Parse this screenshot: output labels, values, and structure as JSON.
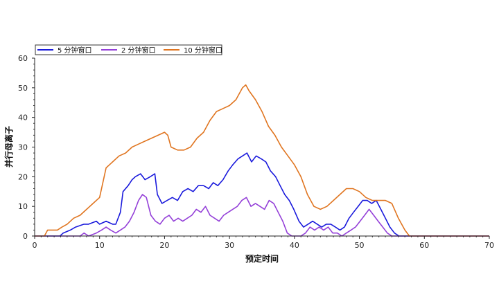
{
  "chart_data": {
    "type": "line",
    "title": "",
    "xlabel": "预定时间",
    "ylabel": "并行母离子",
    "xlim": [
      0,
      70
    ],
    "ylim": [
      0,
      60
    ],
    "xticks": [
      0,
      10,
      20,
      30,
      40,
      50,
      60,
      70
    ],
    "yticks": [
      0,
      10,
      20,
      30,
      40,
      50,
      60
    ],
    "grid": false,
    "legend_position": "top-left",
    "series": [
      {
        "name": "5 分钟窗口",
        "color": "#1a1adc",
        "x": [
          0,
          3.9,
          4.4,
          5.5,
          6.3,
          7.6,
          8.3,
          9.5,
          10,
          11,
          12,
          12.5,
          13.2,
          13.6,
          14.4,
          15,
          15.5,
          16.3,
          17,
          17.8,
          18.5,
          18.9,
          19.6,
          20.4,
          21.2,
          22,
          22.8,
          23.6,
          24.4,
          25.2,
          26,
          26.8,
          27.5,
          28.2,
          29,
          29.8,
          30.5,
          31.3,
          32,
          32.7,
          33.4,
          34.1,
          34.9,
          35.6,
          36.3,
          37.1,
          37.8,
          38.5,
          39.2,
          39.9,
          40.7,
          41.4,
          42.1,
          42.8,
          43.5,
          44.2,
          44.9,
          45.6,
          46.3,
          47,
          47.7,
          48.4,
          49.1,
          49.8,
          50.5,
          51.2,
          51.9,
          52.6,
          53.3,
          54,
          54.7,
          55.4,
          56.1,
          57,
          70
        ],
        "y": [
          0,
          0,
          1,
          2,
          3,
          4,
          4,
          5,
          4,
          5,
          4,
          4,
          8,
          15,
          17,
          19,
          20,
          21,
          19,
          20,
          21,
          14,
          11,
          12,
          13,
          12,
          15,
          16,
          15,
          17,
          17,
          16,
          18,
          17,
          19,
          22,
          24,
          26,
          27,
          28,
          25,
          27,
          26,
          25,
          22,
          20,
          17,
          14,
          12,
          9,
          5,
          3,
          4,
          5,
          4,
          3,
          4,
          4,
          3,
          2,
          3,
          6,
          8,
          10,
          12,
          12,
          11,
          12,
          9,
          6,
          3,
          1,
          0,
          0,
          0
        ]
      },
      {
        "name": "2 分钟窗口",
        "color": "#9440d8",
        "x": [
          0,
          7,
          7.6,
          8.3,
          9.5,
          10.3,
          11,
          11.7,
          12.5,
          13.2,
          13.9,
          14.6,
          15.3,
          16,
          16.6,
          17.2,
          17.9,
          18.6,
          19.3,
          20,
          20.7,
          21.4,
          22.1,
          22.8,
          23.5,
          24.2,
          24.9,
          25.6,
          26.3,
          27,
          27.7,
          28.4,
          29.1,
          29.8,
          30.5,
          31.2,
          31.9,
          32.6,
          33.3,
          34,
          34.7,
          35.4,
          36.1,
          36.8,
          37.5,
          38.2,
          38.9,
          39.6,
          40.3,
          41,
          41.7,
          42.4,
          43.1,
          43.8,
          44.5,
          45.2,
          45.9,
          46.6,
          47.3,
          48,
          48.7,
          49.4,
          50.1,
          50.8,
          51.5,
          52.2,
          52.9,
          53.6,
          54.3,
          55,
          70
        ],
        "y": [
          0,
          0,
          1,
          0,
          1,
          2,
          3,
          2,
          1,
          2,
          3,
          5,
          8,
          12,
          14,
          13,
          7,
          5,
          4,
          6,
          7,
          5,
          6,
          5,
          6,
          7,
          9,
          8,
          10,
          7,
          6,
          5,
          7,
          8,
          9,
          10,
          12,
          13,
          10,
          11,
          10,
          9,
          12,
          11,
          8,
          5,
          1,
          0,
          0,
          0,
          1,
          3,
          2,
          3,
          2,
          3,
          1,
          1,
          0,
          1,
          2,
          3,
          5,
          7,
          9,
          7,
          5,
          3,
          1,
          0,
          0
        ]
      },
      {
        "name": "10 分钟窗口",
        "color": "#e07520",
        "x": [
          0,
          1.5,
          2,
          3.5,
          4.2,
          5,
          6,
          7,
          8,
          9,
          10,
          10.5,
          11,
          11.5,
          12,
          13,
          14,
          15,
          16,
          17,
          18,
          19,
          20,
          20.5,
          21,
          22,
          23,
          24,
          25,
          26,
          27,
          28,
          29,
          30,
          31,
          31.5,
          32,
          32.5,
          33,
          34,
          35,
          36,
          37,
          38,
          39,
          40,
          41,
          42,
          43,
          44,
          45,
          46,
          47,
          48,
          49,
          50,
          51,
          52,
          53,
          54,
          55,
          56,
          57,
          57.7,
          58.2,
          70
        ],
        "y": [
          0,
          0,
          2,
          2,
          3,
          4,
          6,
          7,
          9,
          11,
          13,
          18,
          23,
          24,
          25,
          27,
          28,
          30,
          31,
          32,
          33,
          34,
          35,
          34,
          30,
          29,
          29,
          30,
          33,
          35,
          39,
          42,
          43,
          44,
          46,
          48,
          50,
          51,
          49,
          46,
          42,
          37,
          34,
          30,
          27,
          24,
          20,
          14,
          10,
          9,
          10,
          12,
          14,
          16,
          16,
          15,
          13,
          12,
          12,
          12,
          11,
          6,
          2,
          0,
          0,
          0
        ]
      }
    ]
  }
}
